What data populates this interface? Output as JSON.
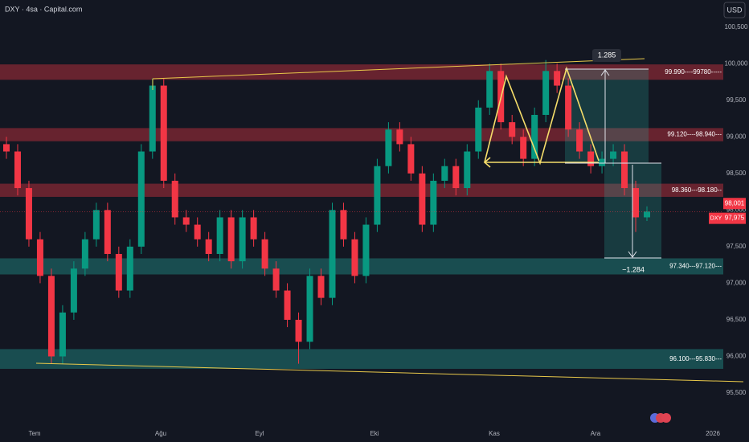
{
  "chart_data": {
    "type": "candlestick",
    "title": "DXY · 4sa · Capital.com",
    "currency": "USD",
    "ylim": [
      95.05,
      100.87
    ],
    "yticks": [
      {
        "value": 95.5,
        "label": "95,500"
      },
      {
        "value": 96,
        "label": "96,000"
      },
      {
        "value": 96.5,
        "label": "96,500"
      },
      {
        "value": 97,
        "label": "97,000"
      },
      {
        "value": 97.5,
        "label": "97,500"
      },
      {
        "value": 98,
        "label": "98,000"
      },
      {
        "value": 98.5,
        "label": "98,500"
      },
      {
        "value": 99,
        "label": "99,000"
      },
      {
        "value": 99.5,
        "label": "99,500"
      },
      {
        "value": 100,
        "label": "100,000"
      },
      {
        "value": 100.5,
        "label": "100,500"
      }
    ],
    "x_labels": [
      "Tem",
      "Ağu",
      "Eyl",
      "Eki",
      "Kas",
      "Ara",
      "2026"
    ],
    "up_color": "#089981",
    "down_color": "#f23645",
    "candles": [
      [
        98.9,
        99.0,
        98.7,
        98.8
      ],
      [
        98.8,
        98.9,
        98.2,
        98.3
      ],
      [
        98.3,
        98.4,
        97.5,
        97.6
      ],
      [
        97.6,
        97.7,
        97.0,
        97.1
      ],
      [
        97.1,
        97.2,
        95.9,
        96.0
      ],
      [
        96.0,
        96.7,
        95.9,
        96.6
      ],
      [
        96.6,
        97.3,
        96.5,
        97.2
      ],
      [
        97.2,
        97.7,
        97.1,
        97.6
      ],
      [
        97.6,
        98.1,
        97.5,
        98.0
      ],
      [
        98.0,
        98.1,
        97.3,
        97.4
      ],
      [
        97.4,
        97.5,
        96.8,
        96.9
      ],
      [
        96.9,
        97.6,
        96.8,
        97.5
      ],
      [
        97.5,
        98.9,
        97.4,
        98.8
      ],
      [
        98.8,
        99.8,
        98.7,
        99.7
      ],
      [
        99.7,
        99.8,
        98.3,
        98.4
      ],
      [
        98.4,
        98.5,
        97.8,
        97.9
      ],
      [
        97.9,
        98.0,
        97.7,
        97.8
      ],
      [
        97.8,
        97.9,
        97.5,
        97.6
      ],
      [
        97.6,
        97.7,
        97.3,
        97.4
      ],
      [
        97.4,
        98.0,
        97.3,
        97.9
      ],
      [
        97.9,
        98.0,
        97.2,
        97.3
      ],
      [
        97.3,
        98.0,
        97.2,
        97.9
      ],
      [
        97.9,
        98.0,
        97.5,
        97.6
      ],
      [
        97.6,
        97.7,
        97.1,
        97.2
      ],
      [
        97.2,
        97.3,
        96.8,
        96.9
      ],
      [
        96.9,
        97.0,
        96.4,
        96.5
      ],
      [
        96.5,
        96.6,
        95.9,
        96.2
      ],
      [
        96.2,
        97.2,
        96.1,
        97.1
      ],
      [
        97.1,
        97.2,
        96.7,
        96.8
      ],
      [
        96.8,
        98.1,
        96.7,
        98.0
      ],
      [
        98.0,
        98.1,
        97.5,
        97.6
      ],
      [
        97.6,
        97.7,
        97.0,
        97.1
      ],
      [
        97.1,
        97.9,
        97.0,
        97.8
      ],
      [
        97.8,
        98.7,
        97.7,
        98.6
      ],
      [
        98.6,
        99.2,
        98.5,
        99.1
      ],
      [
        99.1,
        99.2,
        98.8,
        98.9
      ],
      [
        98.9,
        99.0,
        98.4,
        98.5
      ],
      [
        98.5,
        98.6,
        97.7,
        97.8
      ],
      [
        97.8,
        98.5,
        97.7,
        98.4
      ],
      [
        98.4,
        98.7,
        98.3,
        98.6
      ],
      [
        98.6,
        98.7,
        98.2,
        98.3
      ],
      [
        98.3,
        98.9,
        98.2,
        98.8
      ],
      [
        98.8,
        99.5,
        98.7,
        99.4
      ],
      [
        99.4,
        100.0,
        99.3,
        99.9
      ],
      [
        99.9,
        100.0,
        99.1,
        99.2
      ],
      [
        99.2,
        99.3,
        98.9,
        99.0
      ],
      [
        99.0,
        99.1,
        98.6,
        98.7
      ],
      [
        98.7,
        99.4,
        98.6,
        99.3
      ],
      [
        99.3,
        100.05,
        99.2,
        99.9
      ],
      [
        99.9,
        100.0,
        99.6,
        99.7
      ],
      [
        99.7,
        99.8,
        99.0,
        99.1
      ],
      [
        99.1,
        99.2,
        98.7,
        98.8
      ],
      [
        98.8,
        98.9,
        98.5,
        98.6
      ],
      [
        98.6,
        98.8,
        98.5,
        98.7
      ],
      [
        98.7,
        98.9,
        98.6,
        98.8
      ],
      [
        98.8,
        98.9,
        98.2,
        98.3
      ],
      [
        98.3,
        98.4,
        97.7,
        97.9
      ],
      [
        97.9,
        98.05,
        97.85,
        97.98
      ]
    ],
    "zones": [
      {
        "label": "99.990----99780-----",
        "high": 99.99,
        "low": 99.78,
        "color": "rgba(242,54,69,0.38)"
      },
      {
        "label": "99.120----98.940---",
        "high": 99.12,
        "low": 98.94,
        "color": "rgba(242,54,69,0.38)"
      },
      {
        "label": "98.360---98.180--",
        "high": 98.36,
        "low": 98.18,
        "color": "rgba(242,54,69,0.38)"
      },
      {
        "label": "97.340---97.120---",
        "high": 97.34,
        "low": 97.12,
        "color": "rgba(38,166,154,0.38)"
      },
      {
        "label": "96.100---95.830---",
        "high": 96.1,
        "low": 95.83,
        "color": "rgba(38,166,154,0.38)"
      }
    ],
    "price_tag": {
      "value": 98.001,
      "label": "98,001"
    },
    "symbol": "DXY",
    "last_price": {
      "value": 97.975,
      "label": "97,975"
    },
    "measures": [
      1.285,
      {
        "value": -1.284,
        "label": "−1.284"
      }
    ]
  }
}
